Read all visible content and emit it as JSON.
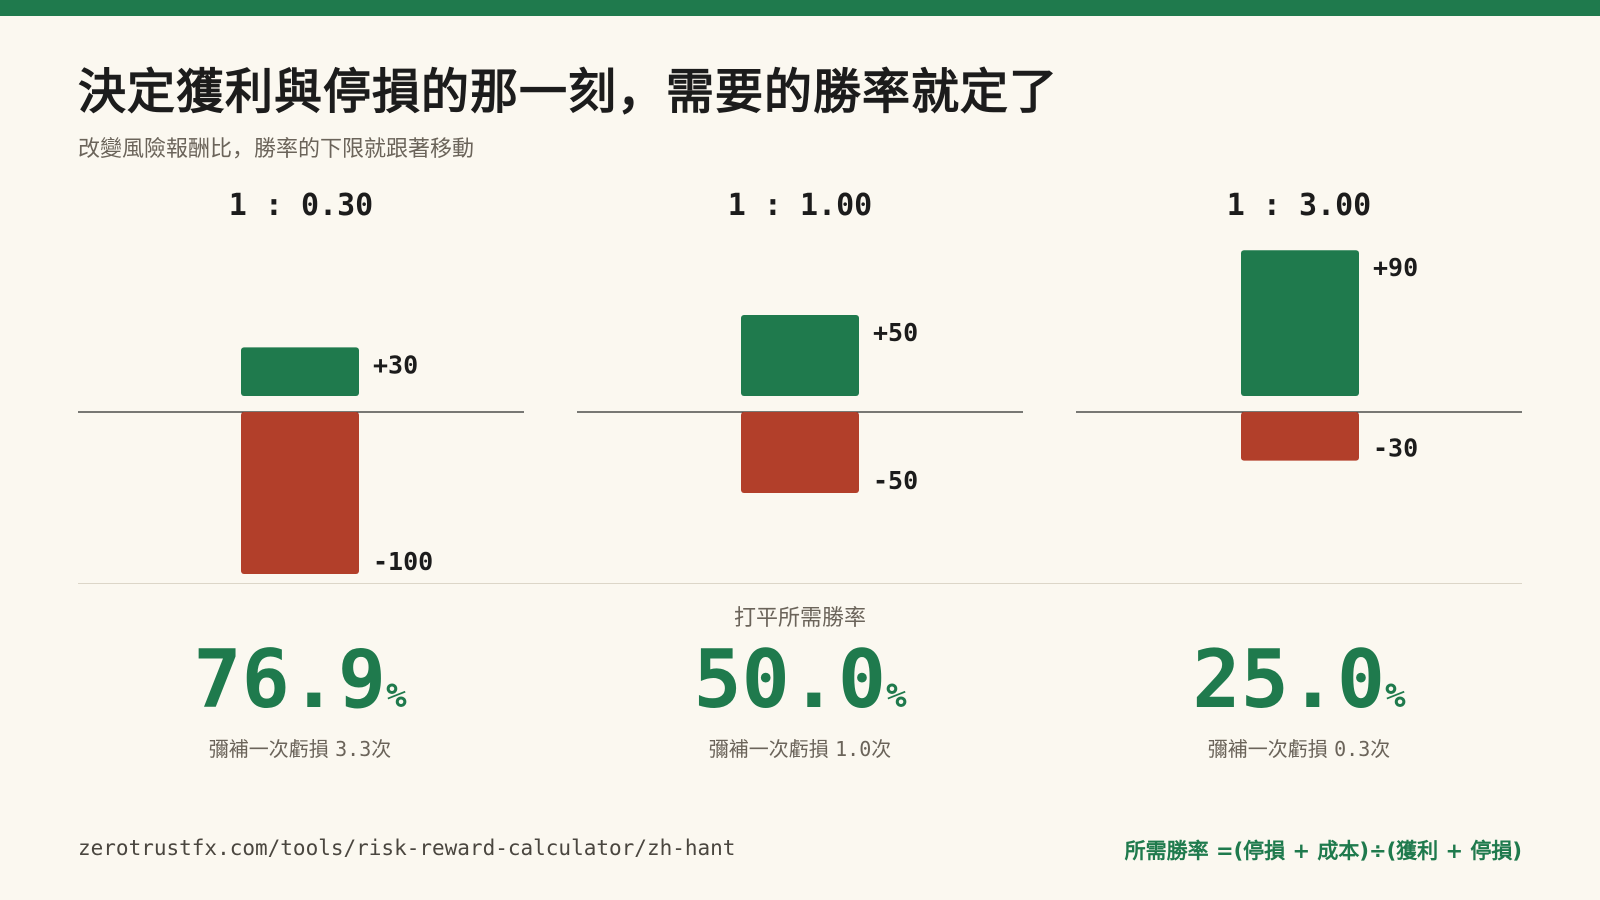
{
  "title": "決定獲利與停損的那一刻，需要的勝率就定了",
  "subtitle": "改變風險報酬比，勝率的下限就跟著移動",
  "breakeven_label": "打平所需勝率",
  "colors": {
    "gain": "#1f7a4d",
    "loss": "#b23f2a",
    "accent": "#1f7a4d",
    "background": "#fbf8f0"
  },
  "chart_data": [
    {
      "type": "bar",
      "title": "1 : 0.30",
      "gain": 30,
      "loss": -100,
      "gain_label": "+30",
      "loss_label": "-100",
      "rate_value": "76.9",
      "rate_unit": "%",
      "recover_prefix": "彌補一次虧損",
      "recover_value": "3.3次"
    },
    {
      "type": "bar",
      "title": "1 : 1.00",
      "gain": 50,
      "loss": -50,
      "gain_label": "+50",
      "loss_label": "-50",
      "rate_value": "50.0",
      "rate_unit": "%",
      "recover_prefix": "彌補一次虧損",
      "recover_value": "1.0次"
    },
    {
      "type": "bar",
      "title": "1 : 3.00",
      "gain": 90,
      "loss": -30,
      "gain_label": "+90",
      "loss_label": "-30",
      "rate_value": "25.0",
      "rate_unit": "%",
      "recover_prefix": "彌補一次虧損",
      "recover_value": "0.3次"
    }
  ],
  "footer": {
    "url": "zerotrustfx.com/tools/risk-reward-calculator/zh-hant",
    "formula": "所需勝率 =(停損 + 成本)÷(獲利 + 停損)"
  }
}
